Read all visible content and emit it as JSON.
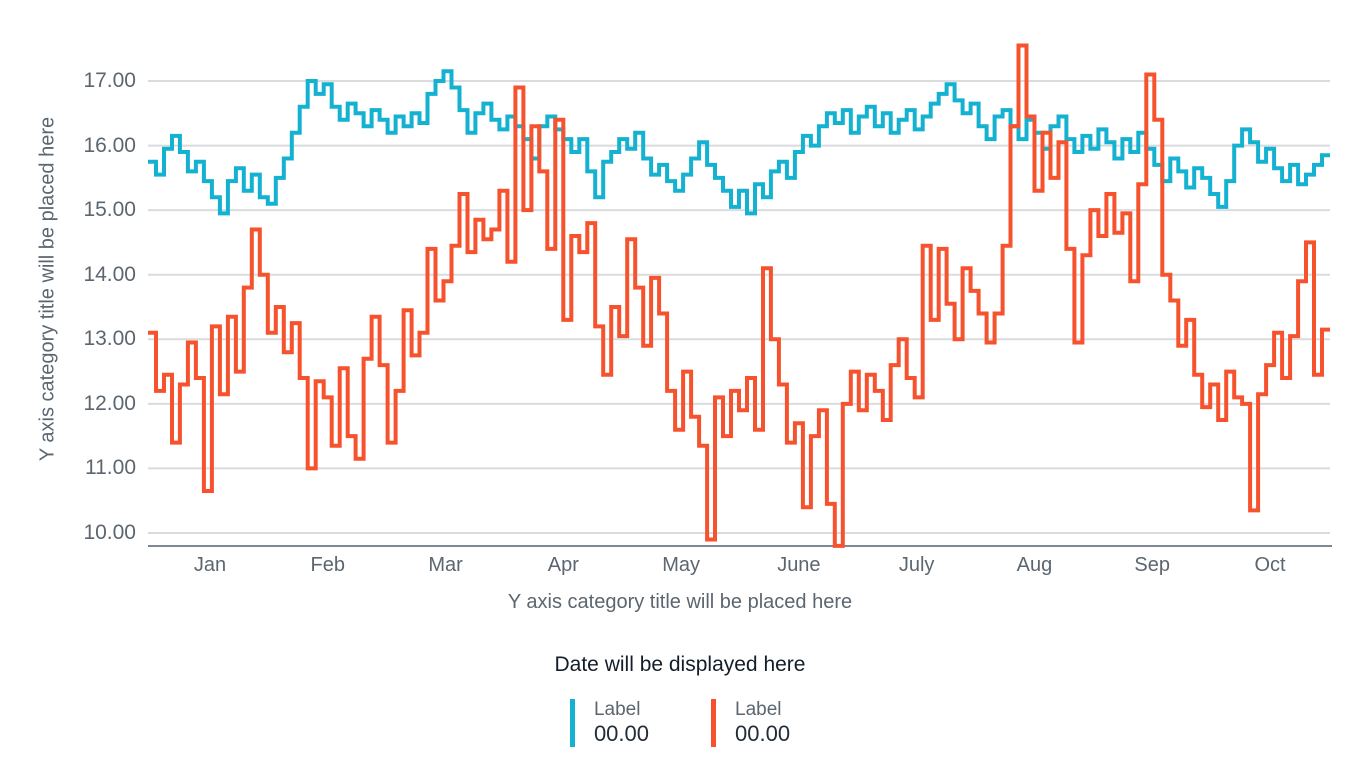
{
  "colors": {
    "teal": "#14b1d1",
    "orange": "#f6522e",
    "grid": "#d9dbde",
    "axis_line": "#7e8894",
    "tick_text": "#5c6670",
    "dark_text": "#141e29"
  },
  "chart_data": {
    "type": "line",
    "step": true,
    "title": "",
    "xlabel": "Y axis category title will be placed here",
    "ylabel": "Y axis category title will be placed here",
    "x_tick_labels": [
      "Jan",
      "Feb",
      "Mar",
      "Apr",
      "May",
      "June",
      "July",
      "Aug",
      "Sep",
      "Oct"
    ],
    "y_tick_labels": [
      "17.00",
      "16.00",
      "15.00",
      "14.00",
      "13.00",
      "12.00",
      "11.00",
      "10.00"
    ],
    "ylim": [
      9.7,
      17.6
    ],
    "grid": true,
    "legend_position": "bottom-center",
    "series": [
      {
        "name": "Label",
        "value_label": "00.00",
        "color": "#14b1d1",
        "values": [
          15.75,
          15.55,
          15.95,
          16.15,
          15.9,
          15.6,
          15.75,
          15.45,
          15.2,
          14.95,
          15.45,
          15.65,
          15.3,
          15.55,
          15.2,
          15.1,
          15.5,
          15.8,
          16.2,
          16.6,
          17.0,
          16.8,
          16.95,
          16.6,
          16.4,
          16.65,
          16.5,
          16.3,
          16.55,
          16.4,
          16.2,
          16.45,
          16.3,
          16.5,
          16.35,
          16.8,
          17.0,
          17.15,
          16.9,
          16.55,
          16.2,
          16.5,
          16.65,
          16.4,
          16.25,
          16.45,
          16.3,
          16.1,
          15.8,
          16.3,
          16.45,
          16.25,
          16.1,
          15.9,
          16.1,
          15.6,
          15.2,
          15.75,
          15.9,
          16.1,
          15.95,
          16.2,
          15.8,
          15.55,
          15.7,
          15.45,
          15.3,
          15.55,
          15.8,
          16.05,
          15.7,
          15.5,
          15.3,
          15.05,
          15.3,
          14.95,
          15.4,
          15.2,
          15.6,
          15.75,
          15.5,
          15.9,
          16.15,
          16.0,
          16.3,
          16.5,
          16.35,
          16.55,
          16.2,
          16.45,
          16.6,
          16.3,
          16.5,
          16.2,
          16.4,
          16.55,
          16.25,
          16.45,
          16.65,
          16.8,
          16.95,
          16.7,
          16.5,
          16.65,
          16.3,
          16.1,
          16.45,
          16.55,
          16.3,
          16.1,
          16.4,
          16.2,
          15.95,
          16.3,
          16.45,
          16.1,
          15.9,
          16.15,
          15.95,
          16.25,
          16.05,
          15.8,
          16.1,
          15.9,
          16.2,
          15.95,
          15.7,
          15.45,
          15.8,
          15.6,
          15.35,
          15.65,
          15.5,
          15.25,
          15.05,
          15.45,
          16.0,
          16.25,
          16.05,
          15.75,
          15.95,
          15.65,
          15.45,
          15.7,
          15.4,
          15.55,
          15.7,
          15.85
        ]
      },
      {
        "name": "Label",
        "value_label": "00.00",
        "color": "#f6522e",
        "values": [
          13.1,
          12.2,
          12.45,
          11.4,
          12.3,
          12.95,
          12.4,
          10.65,
          13.2,
          12.15,
          13.35,
          12.5,
          13.8,
          14.7,
          14.0,
          13.1,
          13.5,
          12.8,
          13.25,
          12.4,
          11.0,
          12.35,
          12.1,
          11.35,
          12.55,
          11.5,
          11.15,
          12.7,
          13.35,
          12.6,
          11.4,
          12.2,
          13.45,
          12.75,
          13.1,
          14.4,
          13.6,
          13.9,
          14.45,
          15.25,
          14.35,
          14.85,
          14.55,
          14.7,
          15.3,
          14.2,
          16.9,
          15.0,
          16.3,
          15.6,
          14.4,
          16.4,
          13.3,
          14.6,
          14.35,
          14.8,
          13.2,
          12.45,
          13.5,
          13.05,
          14.55,
          13.8,
          12.9,
          13.95,
          13.4,
          12.2,
          11.6,
          12.5,
          11.8,
          11.35,
          9.9,
          12.1,
          11.5,
          12.2,
          11.9,
          12.4,
          11.6,
          14.1,
          13.0,
          12.3,
          11.4,
          11.7,
          10.4,
          11.5,
          11.9,
          10.45,
          9.8,
          12.0,
          12.5,
          11.9,
          12.45,
          12.2,
          11.75,
          12.6,
          13.0,
          12.4,
          12.1,
          14.45,
          13.3,
          14.4,
          13.55,
          13.0,
          14.1,
          13.75,
          13.4,
          12.95,
          13.4,
          14.45,
          16.3,
          17.55,
          16.45,
          15.3,
          16.2,
          15.5,
          16.05,
          14.4,
          12.95,
          14.3,
          15.0,
          14.6,
          15.25,
          14.65,
          14.95,
          13.9,
          15.4,
          17.1,
          16.4,
          14.0,
          13.6,
          12.9,
          13.3,
          12.45,
          11.95,
          12.3,
          11.75,
          12.5,
          12.1,
          12.0,
          10.35,
          12.15,
          12.6,
          13.1,
          12.4,
          13.05,
          13.9,
          14.5,
          12.45,
          13.15
        ]
      }
    ]
  },
  "footer": {
    "date_text": "Date will be displayed here",
    "legend": [
      {
        "label": "Label",
        "value": "00.00",
        "color": "#14b1d1"
      },
      {
        "label": "Label",
        "value": "00.00",
        "color": "#f6522e"
      }
    ]
  }
}
